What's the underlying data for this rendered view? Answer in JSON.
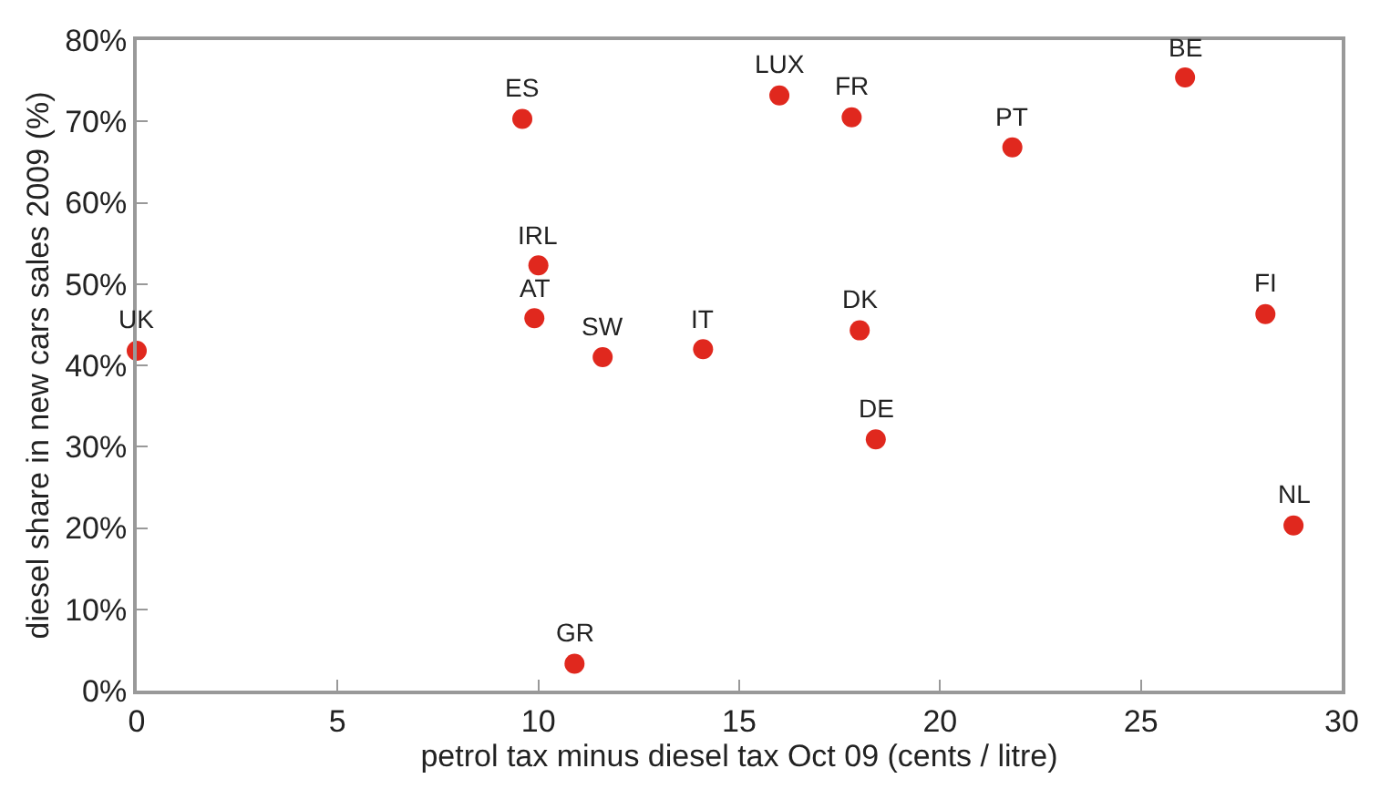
{
  "chart_data": {
    "type": "scatter",
    "xlabel": "petrol tax minus diesel tax Oct 09 (cents / litre)",
    "ylabel": "diesel share in new cars sales 2009 (%)",
    "x": [
      0.0,
      9.6,
      10.0,
      9.9,
      11.6,
      14.1,
      16.0,
      17.8,
      21.8,
      26.1,
      18.0,
      28.1,
      18.4,
      28.8,
      10.9
    ],
    "series": [
      {
        "color": "#e0281e",
        "values": [
          41.8,
          70.3,
          52.3,
          45.8,
          41.0,
          42.0,
          73.2,
          70.5,
          66.8,
          75.4,
          44.3,
          46.3,
          30.9,
          20.3,
          3.3
        ]
      }
    ],
    "annotations": [
      {
        "text": "UK",
        "x": 0.0,
        "y": 41.8
      },
      {
        "text": "ES",
        "x": 9.6,
        "y": 70.3
      },
      {
        "text": "IRL",
        "x": 10.0,
        "y": 52.3
      },
      {
        "text": "AT",
        "x": 9.9,
        "y": 45.8
      },
      {
        "text": "SW",
        "x": 11.6,
        "y": 41.0
      },
      {
        "text": "IT",
        "x": 14.1,
        "y": 42.0
      },
      {
        "text": "LUX",
        "x": 16.0,
        "y": 73.2
      },
      {
        "text": "FR",
        "x": 17.8,
        "y": 70.5
      },
      {
        "text": "PT",
        "x": 21.8,
        "y": 66.8
      },
      {
        "text": "BE",
        "x": 26.1,
        "y": 75.4
      },
      {
        "text": "DK",
        "x": 18.0,
        "y": 44.3
      },
      {
        "text": "FI",
        "x": 28.1,
        "y": 46.3
      },
      {
        "text": "DE",
        "x": 18.4,
        "y": 30.9
      },
      {
        "text": "NL",
        "x": 28.8,
        "y": 20.3
      },
      {
        "text": "GR",
        "x": 10.9,
        "y": 3.3
      }
    ],
    "xlim": [
      0,
      30
    ],
    "xticks": [
      0,
      5,
      10,
      15,
      20,
      25,
      30
    ],
    "ylim": [
      0,
      80
    ],
    "yticks": [
      {
        "value": 0,
        "label": "0%"
      },
      {
        "value": 10,
        "label": "10%"
      },
      {
        "value": 20,
        "label": "20%"
      },
      {
        "value": 30,
        "label": "30%"
      },
      {
        "value": 40,
        "label": "40%"
      },
      {
        "value": 50,
        "label": "50%"
      },
      {
        "value": 60,
        "label": "60%"
      },
      {
        "value": 70,
        "label": "70%"
      },
      {
        "value": 80,
        "label": "80%"
      }
    ],
    "marker": "circle"
  }
}
